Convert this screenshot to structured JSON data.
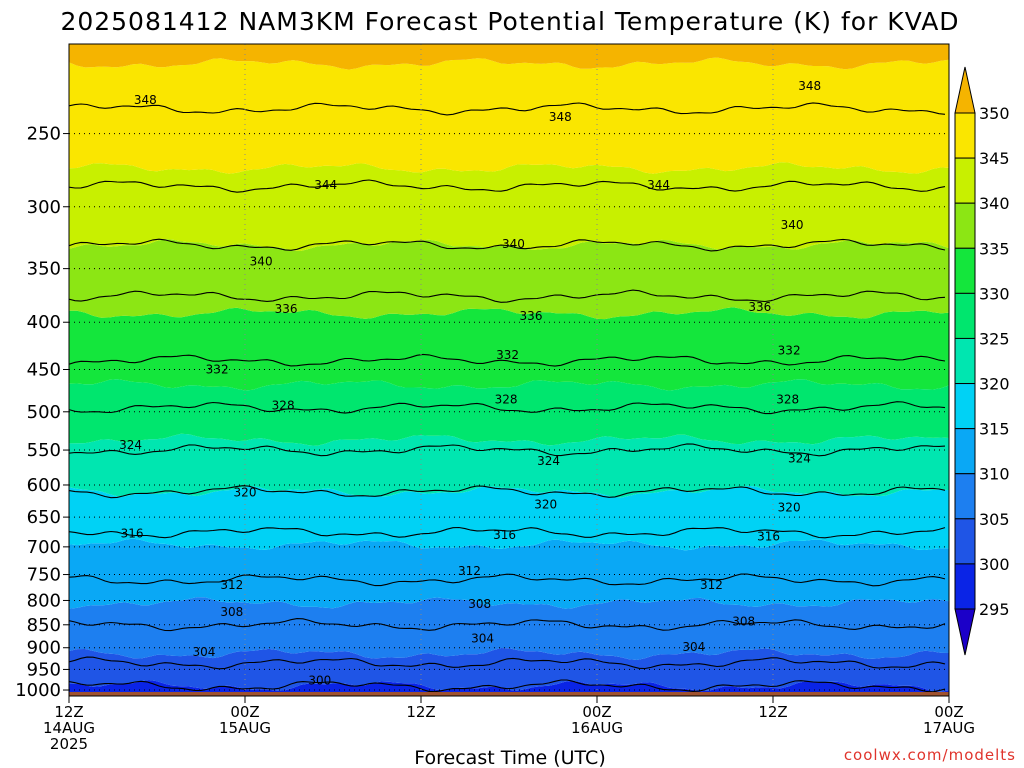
{
  "chart_data": {
    "type": "heatmap",
    "title": "2025081412 NAM3KM Forecast Potential Temperature (K) for KVAD",
    "xlabel": "Forecast Time (UTC)",
    "ylabel": "",
    "y_ticks": [
      250,
      300,
      350,
      400,
      450,
      500,
      550,
      600,
      650,
      700,
      750,
      800,
      850,
      900,
      950,
      1000
    ],
    "y_range": [
      1015,
      200
    ],
    "x_ticks": [
      {
        "hour": 0,
        "lines": [
          "12Z",
          "14AUG",
          "2025"
        ]
      },
      {
        "hour": 12,
        "lines": [
          "00Z",
          "15AUG"
        ]
      },
      {
        "hour": 24,
        "lines": [
          "12Z"
        ]
      },
      {
        "hour": 36,
        "lines": [
          "00Z",
          "16AUG"
        ]
      },
      {
        "hour": 48,
        "lines": [
          "12Z"
        ]
      },
      {
        "hour": 60,
        "lines": [
          "00Z",
          "17AUG"
        ]
      }
    ],
    "x_range": [
      0,
      60
    ],
    "colorbar": {
      "levels": [
        295,
        300,
        305,
        310,
        315,
        320,
        325,
        330,
        335,
        340,
        345,
        350
      ],
      "colors": [
        "#1b00c8",
        "#0a24e6",
        "#1f55e6",
        "#1d7ff0",
        "#0aa8f5",
        "#00d2f5",
        "#00e6b0",
        "#00e66e",
        "#14e63c",
        "#8ce614",
        "#c8f000",
        "#fae600",
        "#f5b400"
      ]
    },
    "contour_levels": [
      300,
      304,
      308,
      312,
      316,
      320,
      324,
      328,
      332,
      336,
      340,
      344,
      348
    ],
    "contour_profile": [
      {
        "theta": 300,
        "p": 990
      },
      {
        "theta": 304,
        "p": 935
      },
      {
        "theta": 308,
        "p": 850
      },
      {
        "theta": 312,
        "p": 760
      },
      {
        "theta": 316,
        "p": 675
      },
      {
        "theta": 320,
        "p": 610
      },
      {
        "theta": 324,
        "p": 550
      },
      {
        "theta": 328,
        "p": 495
      },
      {
        "theta": 332,
        "p": 440
      },
      {
        "theta": 336,
        "p": 375
      },
      {
        "theta": 340,
        "p": 330
      },
      {
        "theta": 344,
        "p": 285
      },
      {
        "theta": 348,
        "p": 235
      }
    ],
    "contour_labels": [
      {
        "text": "348",
        "hour": 5.2,
        "p": 230
      },
      {
        "text": "348",
        "hour": 33.5,
        "p": 240
      },
      {
        "text": "348",
        "hour": 50.5,
        "p": 222
      },
      {
        "text": "344",
        "hour": 17.5,
        "p": 284
      },
      {
        "text": "344",
        "hour": 40.2,
        "p": 284
      },
      {
        "text": "340",
        "hour": 13.1,
        "p": 344
      },
      {
        "text": "340",
        "hour": 30.3,
        "p": 329
      },
      {
        "text": "340",
        "hour": 49.3,
        "p": 314
      },
      {
        "text": "336",
        "hour": 14.8,
        "p": 387
      },
      {
        "text": "336",
        "hour": 31.5,
        "p": 394
      },
      {
        "text": "336",
        "hour": 47.1,
        "p": 385
      },
      {
        "text": "332",
        "hour": 10.1,
        "p": 450
      },
      {
        "text": "332",
        "hour": 29.9,
        "p": 434
      },
      {
        "text": "332",
        "hour": 49.1,
        "p": 429
      },
      {
        "text": "328",
        "hour": 14.6,
        "p": 492
      },
      {
        "text": "328",
        "hour": 29.8,
        "p": 485
      },
      {
        "text": "328",
        "hour": 49.0,
        "p": 485
      },
      {
        "text": "324",
        "hour": 4.2,
        "p": 543
      },
      {
        "text": "324",
        "hour": 32.7,
        "p": 565
      },
      {
        "text": "324",
        "hour": 49.8,
        "p": 562
      },
      {
        "text": "320",
        "hour": 12.0,
        "p": 611
      },
      {
        "text": "320",
        "hour": 32.5,
        "p": 630
      },
      {
        "text": "320",
        "hour": 49.1,
        "p": 635
      },
      {
        "text": "316",
        "hour": 4.3,
        "p": 677
      },
      {
        "text": "316",
        "hour": 29.7,
        "p": 680
      },
      {
        "text": "316",
        "hour": 47.7,
        "p": 682
      },
      {
        "text": "312",
        "hour": 11.1,
        "p": 770
      },
      {
        "text": "312",
        "hour": 27.3,
        "p": 743
      },
      {
        "text": "312",
        "hour": 43.8,
        "p": 770
      },
      {
        "text": "308",
        "hour": 11.1,
        "p": 823
      },
      {
        "text": "308",
        "hour": 28.0,
        "p": 807
      },
      {
        "text": "308",
        "hour": 46.0,
        "p": 843
      },
      {
        "text": "304",
        "hour": 9.2,
        "p": 910
      },
      {
        "text": "304",
        "hour": 28.2,
        "p": 880
      },
      {
        "text": "304",
        "hour": 42.6,
        "p": 898
      },
      {
        "text": "300",
        "hour": 17.1,
        "p": 977
      }
    ],
    "terrain_color": "#a0522d",
    "grid": true
  },
  "credit": "coolwx.com/modelts"
}
